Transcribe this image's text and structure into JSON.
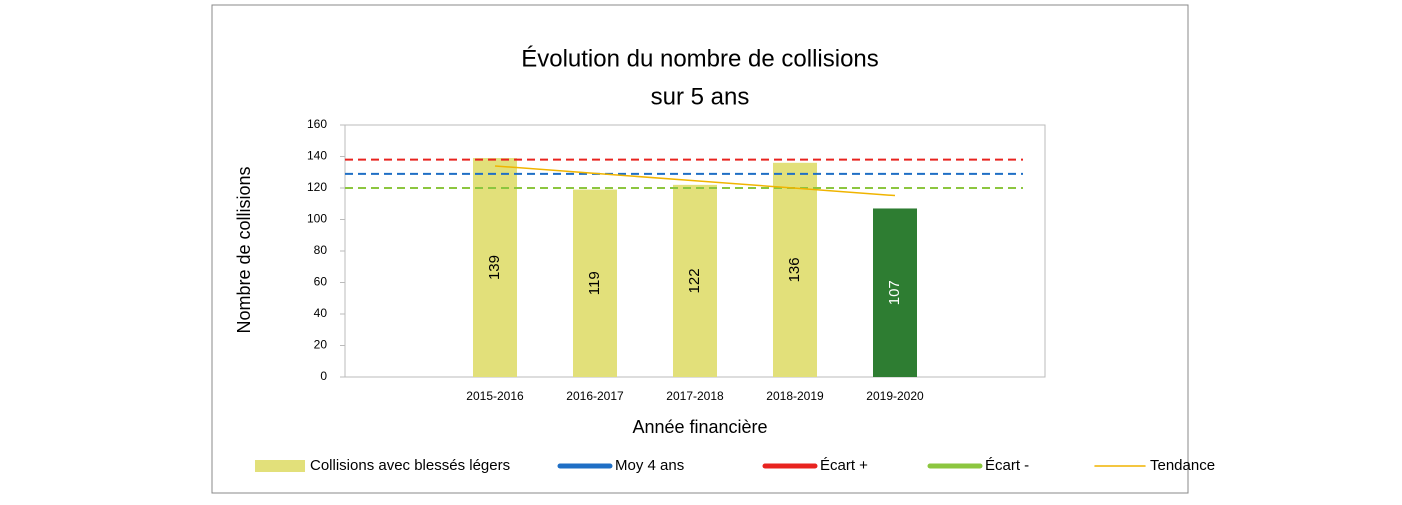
{
  "chart_data": {
    "type": "bar",
    "title": [
      "Évolution du nombre de collisions",
      "sur 5 ans"
    ],
    "x_label": "Année financière",
    "y_label": "Nombre de collisions",
    "categories": [
      null,
      "2015-2016",
      "2016-2017",
      "2017-2018",
      "2018-2019",
      "2019-2020",
      null
    ],
    "series": [
      {
        "name": "Collisions avec blessés légers",
        "color": "#e2e07a",
        "values": [
          null,
          139,
          119,
          122,
          136,
          107,
          null
        ],
        "colors": [
          null,
          "#e2e07a",
          "#e2e07a",
          "#e2e07a",
          "#e2e07a",
          "#2e7d32",
          null
        ]
      },
      {
        "name": "Moy 4 ans",
        "color": "#1f6fc5",
        "type": "hline",
        "value": 129
      },
      {
        "name": "Écart +",
        "color": "#e8231f",
        "type": "hline",
        "value": 138
      },
      {
        "name": "Écart -",
        "color": "#8cc63f",
        "type": "hline",
        "value": 120
      },
      {
        "name": "Tendance",
        "color": "#f0b400",
        "type": "line",
        "values": [
          null,
          134,
          129.3,
          124.6,
          119.9,
          115.2,
          null
        ]
      }
    ],
    "ylim": [
      0,
      160
    ],
    "yticks": [
      0,
      20,
      40,
      60,
      80,
      100,
      120,
      140,
      160
    ],
    "grid": false
  }
}
